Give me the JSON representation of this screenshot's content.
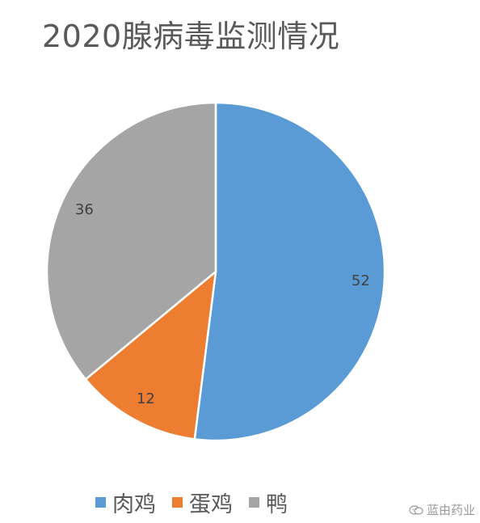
{
  "chart_data": {
    "type": "pie",
    "title": "2020腺病毒监测情况",
    "categories": [
      "肉鸡",
      "蛋鸡",
      "鸭"
    ],
    "values": [
      52,
      12,
      36
    ],
    "colors": [
      "#5B9BD5",
      "#ED7D31",
      "#A5A5A5"
    ],
    "legend_position": "bottom",
    "start_angle": "12 o'clock",
    "direction": "clockwise"
  },
  "watermark": {
    "text": "蓝由药业",
    "icon": "wechat-icon"
  }
}
